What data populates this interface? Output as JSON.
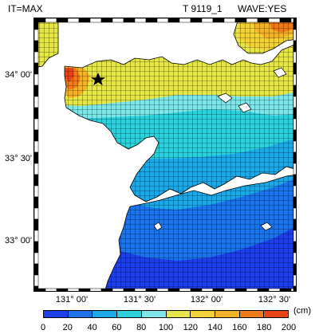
{
  "header": {
    "left": "IT=MAX",
    "middle": "T 9119_1",
    "right": "WAVE:YES"
  },
  "axes": {
    "lat_labels": [
      "34° 00'",
      "33° 30'",
      "33° 00'"
    ],
    "lon_labels": [
      "131° 00'",
      "131° 30'",
      "132° 00'",
      "132° 30'"
    ]
  },
  "colorbar": {
    "unit": "(cm)",
    "ticks": [
      "0",
      "20",
      "40",
      "60",
      "80",
      "100",
      "120",
      "140",
      "160",
      "180",
      "200"
    ],
    "colors": [
      "#1e3ee6",
      "#1c74e8",
      "#1ea8e6",
      "#2ed0dc",
      "#7ee6e8",
      "#e6e64a",
      "#f2d23a",
      "#f2b22c",
      "#ee7a1c",
      "#e8441a"
    ]
  },
  "map_colors": {
    "red": "#e8441a",
    "orange": "#ee7a1c",
    "yellow": "#e6e64a",
    "cyan_light": "#7ee6e8",
    "cyan": "#2ed0dc",
    "teal": "#1ea8e6",
    "blue": "#1c74e8",
    "deep_blue": "#1e3ee6"
  },
  "markers": {
    "star": "star-icon"
  }
}
